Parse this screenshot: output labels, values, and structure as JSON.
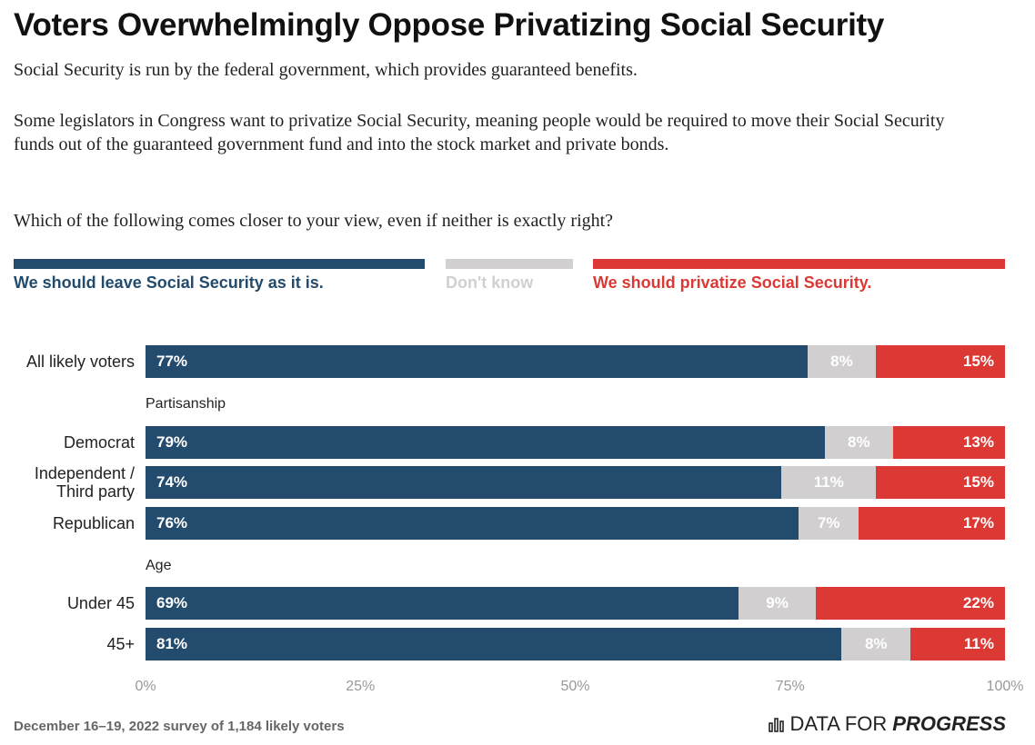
{
  "chart_data": {
    "type": "stacked-bar-horizontal",
    "title": "Voters Overwhelmingly Oppose Privatizing Social Security",
    "description": [
      "Social Security is run by the federal government, which provides guaranteed benefits.",
      "Some legislators in Congress want to privatize Social Security, meaning people would be required to move their Social Security funds out of the guaranteed government fund and into the stock market and private bonds.",
      "Which of the following comes closer to your view, even if neither is exactly right?"
    ],
    "categories": [
      "All likely voters",
      "Partisanship",
      "Democrat",
      "Independent / Third party",
      "Republican",
      "Age",
      "Under 45",
      "45+"
    ],
    "series": [
      {
        "name": "We should leave Social Security as it is.",
        "color": "#234b6d",
        "values": [
          77,
          null,
          79,
          74,
          76,
          null,
          69,
          81
        ],
        "value_labels": [
          "77%",
          null,
          "79%",
          "74%",
          "76%",
          null,
          "69%",
          "81%"
        ]
      },
      {
        "name": "Don't know",
        "color": "#d2cfd1",
        "values": [
          8,
          null,
          8,
          11,
          7,
          null,
          9,
          8
        ],
        "value_labels": [
          "8%",
          null,
          "8%",
          "11%",
          "7%",
          null,
          "9%",
          "8%"
        ]
      },
      {
        "name": "We should privatize Social Security.",
        "color": "#dc3934",
        "values": [
          15,
          null,
          13,
          15,
          17,
          null,
          22,
          11
        ],
        "value_labels": [
          "15%",
          null,
          "13%",
          "15%",
          "17%",
          null,
          "22%",
          "11%"
        ]
      }
    ],
    "xlim": [
      0,
      100
    ],
    "xticks": [
      {
        "value": 0,
        "label": "0%"
      },
      {
        "value": 25,
        "label": "25%"
      },
      {
        "value": 50,
        "label": "50%"
      },
      {
        "value": 75,
        "label": "75%"
      },
      {
        "value": 100,
        "label": "100%"
      }
    ],
    "note": "December 16–19, 2022 survey of 1,184 likely voters"
  },
  "logo": {
    "prefix": "DATA FOR",
    "emphasis": "PROGRESS"
  }
}
